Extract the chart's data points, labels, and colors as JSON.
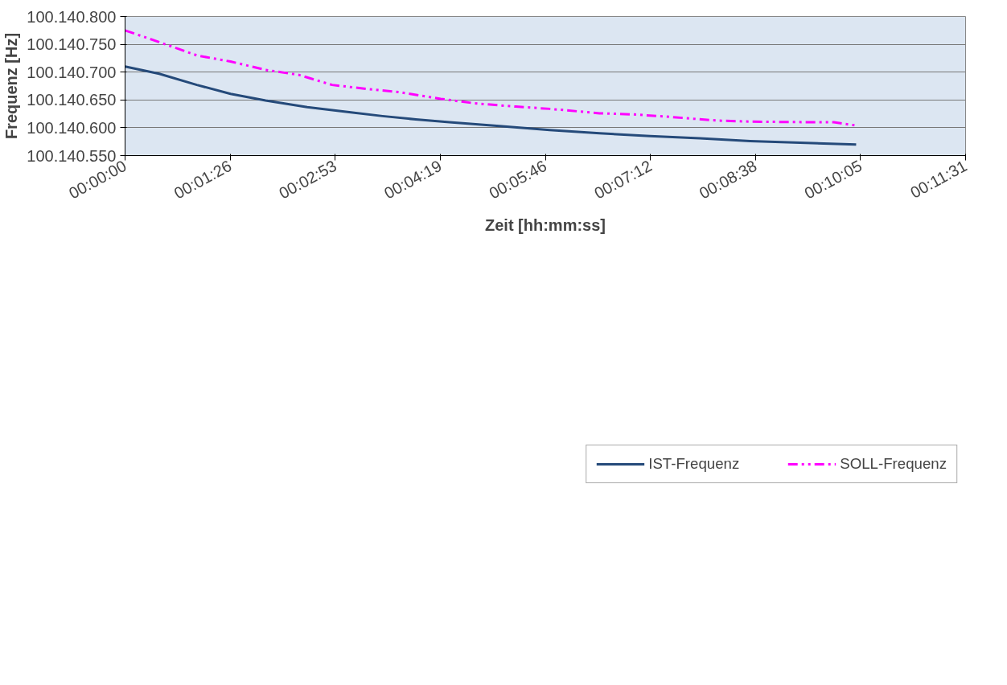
{
  "chart_data": {
    "type": "line",
    "xlabel": "Zeit [hh:mm:ss]",
    "ylabel": "Frequenz [Hz]",
    "xlim": [
      0,
      0.192
    ],
    "ylim": [
      100140550,
      100140800
    ],
    "xticks": [
      {
        "value": 0,
        "label": "00:00:00"
      },
      {
        "value": 0.024,
        "label": "00:01:26"
      },
      {
        "value": 0.048,
        "label": "00:02:53"
      },
      {
        "value": 0.072,
        "label": "00:04:19"
      },
      {
        "value": 0.096,
        "label": "00:05:46"
      },
      {
        "value": 0.12,
        "label": "00:07:12"
      },
      {
        "value": 0.144,
        "label": "00:08:38"
      },
      {
        "value": 0.168,
        "label": "00:10:05"
      },
      {
        "value": 0.192,
        "label": "00:11:31"
      }
    ],
    "yticks": [
      {
        "value": 100140550,
        "label": "100.140.550"
      },
      {
        "value": 100140600,
        "label": "100.140.600"
      },
      {
        "value": 100140650,
        "label": "100.140.650"
      },
      {
        "value": 100140700,
        "label": "100.140.700"
      },
      {
        "value": 100140750,
        "label": "100.140.750"
      },
      {
        "value": 100140800,
        "label": "100.140.800"
      }
    ],
    "grid": "y",
    "legend": "bottom",
    "series": [
      {
        "name": "IST-Frequenz",
        "color": "#254a7a",
        "line_style": "solid",
        "x": [
          0,
          0.0078,
          0.0164,
          0.0241,
          0.0321,
          0.0416,
          0.0512,
          0.0588,
          0.0664,
          0.0741,
          0.0855,
          0.097,
          0.1084,
          0.1199,
          0.1313,
          0.1428,
          0.1542,
          0.167
        ],
        "values": [
          100140710,
          100140697,
          100140677,
          100140661,
          100140649,
          100140637,
          100140628,
          100140621,
          100140615,
          100140610,
          100140603,
          100140596,
          100140590,
          100140585,
          100140581,
          100140576,
          100140573,
          100140570
        ]
      },
      {
        "name": "SOLL-Frequenz",
        "color": "#ff00ff",
        "line_style": "dashdotdot",
        "x": [
          0,
          0.0078,
          0.0164,
          0.0241,
          0.0321,
          0.0397,
          0.0473,
          0.055,
          0.0626,
          0.0721,
          0.0798,
          0.0893,
          0.097,
          0.1084,
          0.1161,
          0.1237,
          0.1351,
          0.1428,
          0.1561,
          0.1619,
          0.167
        ],
        "values": [
          100140775,
          100140754,
          100140730,
          100140719,
          100140704,
          100140695,
          100140677,
          100140670,
          100140664,
          100140652,
          100140644,
          100140638,
          100140634,
          100140626,
          100140624,
          100140620,
          100140613,
          100140611,
          100140610,
          100140610,
          100140604
        ]
      }
    ]
  }
}
